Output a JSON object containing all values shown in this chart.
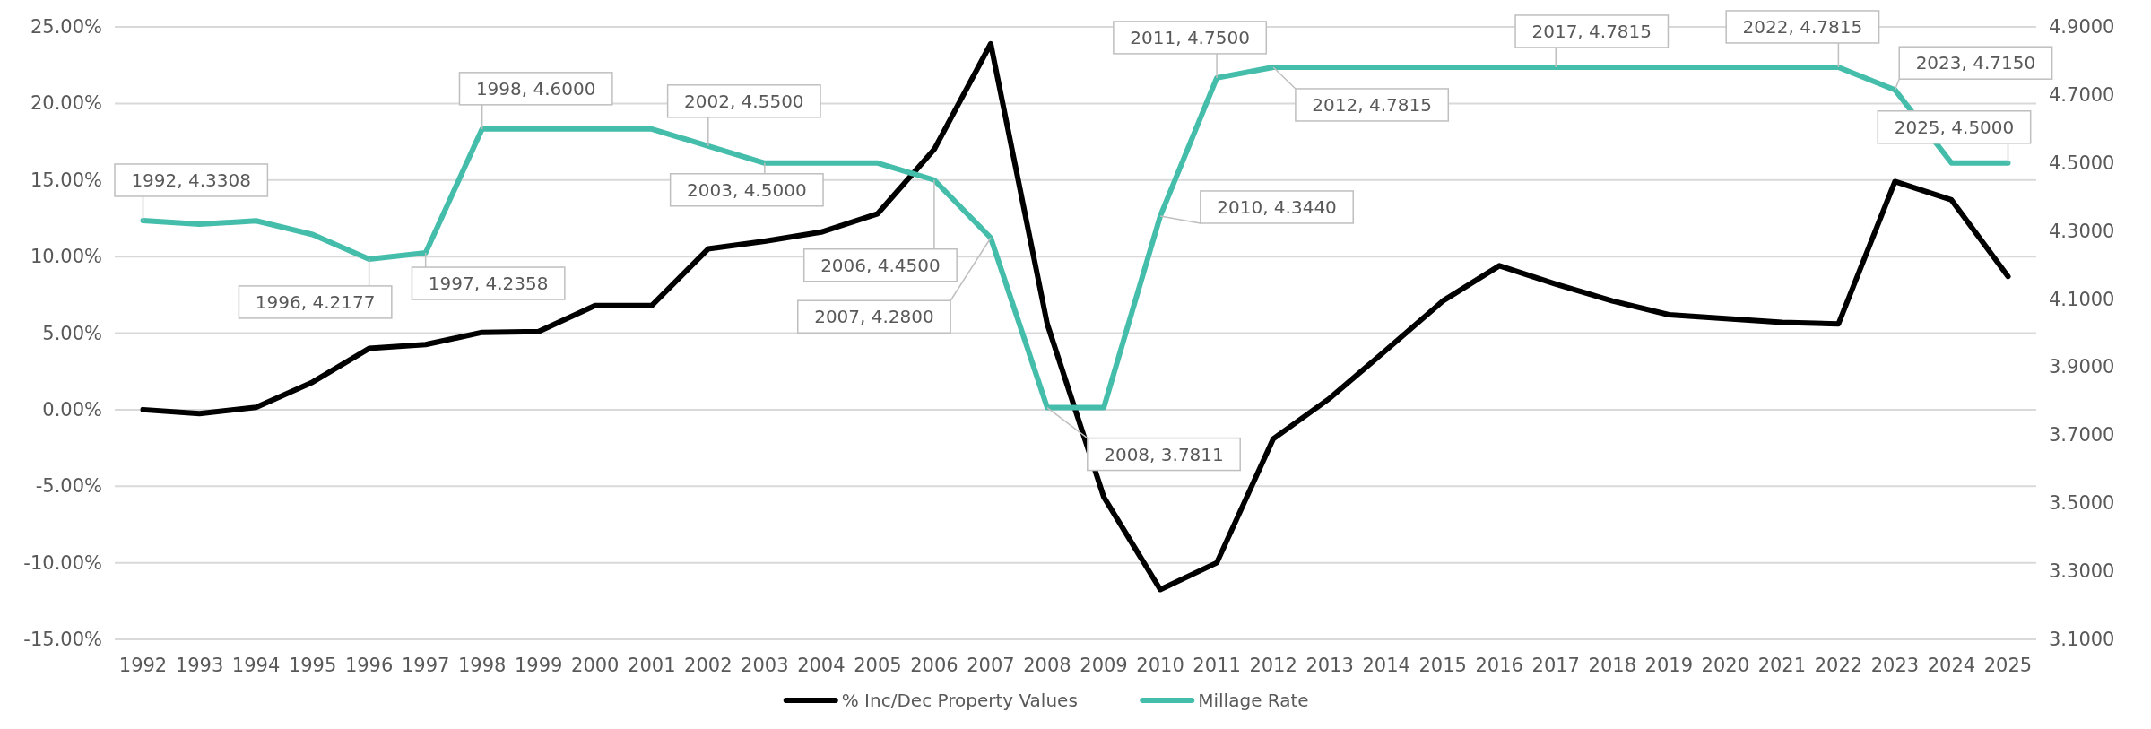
{
  "chart_data": {
    "type": "line",
    "categories": [
      "1992",
      "1993",
      "1994",
      "1995",
      "1996",
      "1997",
      "1998",
      "1999",
      "2000",
      "2001",
      "2002",
      "2003",
      "2004",
      "2005",
      "2006",
      "2007",
      "2008",
      "2009",
      "2010",
      "2011",
      "2012",
      "2013",
      "2014",
      "2015",
      "2016",
      "2017",
      "2018",
      "2019",
      "2020",
      "2021",
      "2022",
      "2023",
      "2024",
      "2025"
    ],
    "series": [
      {
        "name": "% Inc/Dec Property Values",
        "color": "#000000",
        "values": [
          0,
          -0.25,
          0.15,
          1.8,
          4.0,
          4.25,
          5.05,
          5.1,
          6.8,
          6.8,
          10.5,
          11.0,
          11.6,
          12.8,
          17.0,
          23.9,
          5.6,
          -5.7,
          -11.75,
          -10.0,
          -1.9,
          0.75,
          3.9,
          7.1,
          9.4,
          8.2,
          7.1,
          6.2,
          5.95,
          5.7,
          5.6,
          14.9,
          13.7,
          8.7
        ]
      },
      {
        "name": "Millage Rate",
        "color": "#45bdab",
        "axis": "y2",
        "values": [
          4.3308,
          4.32,
          4.33,
          4.29,
          4.2177,
          4.2358,
          4.6,
          4.6,
          4.6,
          4.6,
          4.55,
          4.5,
          4.5,
          4.5,
          4.45,
          4.28,
          3.7811,
          3.7811,
          4.344,
          4.75,
          4.7815,
          4.7815,
          4.7815,
          4.7815,
          4.7815,
          4.7815,
          4.7815,
          4.7815,
          4.7815,
          4.7815,
          4.7815,
          4.715,
          4.5,
          4.5
        ],
        "value_labels": [
          "1992, 4.3308",
          null,
          null,
          null,
          "1996, 4.2177",
          "1997, 4.2358",
          "1998, 4.6000",
          null,
          null,
          null,
          "2002, 4.5500",
          "2003, 4.5000",
          null,
          null,
          "2006, 4.4500",
          "2007, 4.2800",
          "2008, 3.7811",
          null,
          "2010, 4.3440",
          "2011, 4.7500",
          "2012, 4.7815",
          null,
          null,
          null,
          null,
          "2017, 4.7815",
          null,
          null,
          null,
          null,
          "2022, 4.7815",
          "2023, 4.7150",
          null,
          "2025, 4.5000"
        ]
      }
    ],
    "ylim": [
      -15,
      25
    ],
    "yticks": [
      {
        "value": -15,
        "label": "-15.00%"
      },
      {
        "value": -10,
        "label": "-10.00%"
      },
      {
        "value": -5,
        "label": "-5.00%"
      },
      {
        "value": 0,
        "label": "0.00%"
      },
      {
        "value": 5,
        "label": "5.00%"
      },
      {
        "value": 10,
        "label": "10.00%"
      },
      {
        "value": 15,
        "label": "15.00%"
      },
      {
        "value": 20,
        "label": "20.00%"
      },
      {
        "value": 25,
        "label": "25.00%"
      }
    ],
    "y2lim": [
      3.1,
      4.9
    ],
    "y2ticks": [
      {
        "value": 3.1,
        "label": "3.1000"
      },
      {
        "value": 3.3,
        "label": "3.3000"
      },
      {
        "value": 3.5,
        "label": "3.5000"
      },
      {
        "value": 3.7,
        "label": "3.7000"
      },
      {
        "value": 3.9,
        "label": "3.9000"
      },
      {
        "value": 4.1,
        "label": "4.1000"
      },
      {
        "value": 4.3,
        "label": "4.3000"
      },
      {
        "value": 4.5,
        "label": "4.5000"
      },
      {
        "value": 4.7,
        "label": "4.7000"
      },
      {
        "value": 4.9,
        "label": "4.9000"
      }
    ],
    "grid": "y",
    "legend": "bottom",
    "marker": "none",
    "line_style": "solid"
  }
}
